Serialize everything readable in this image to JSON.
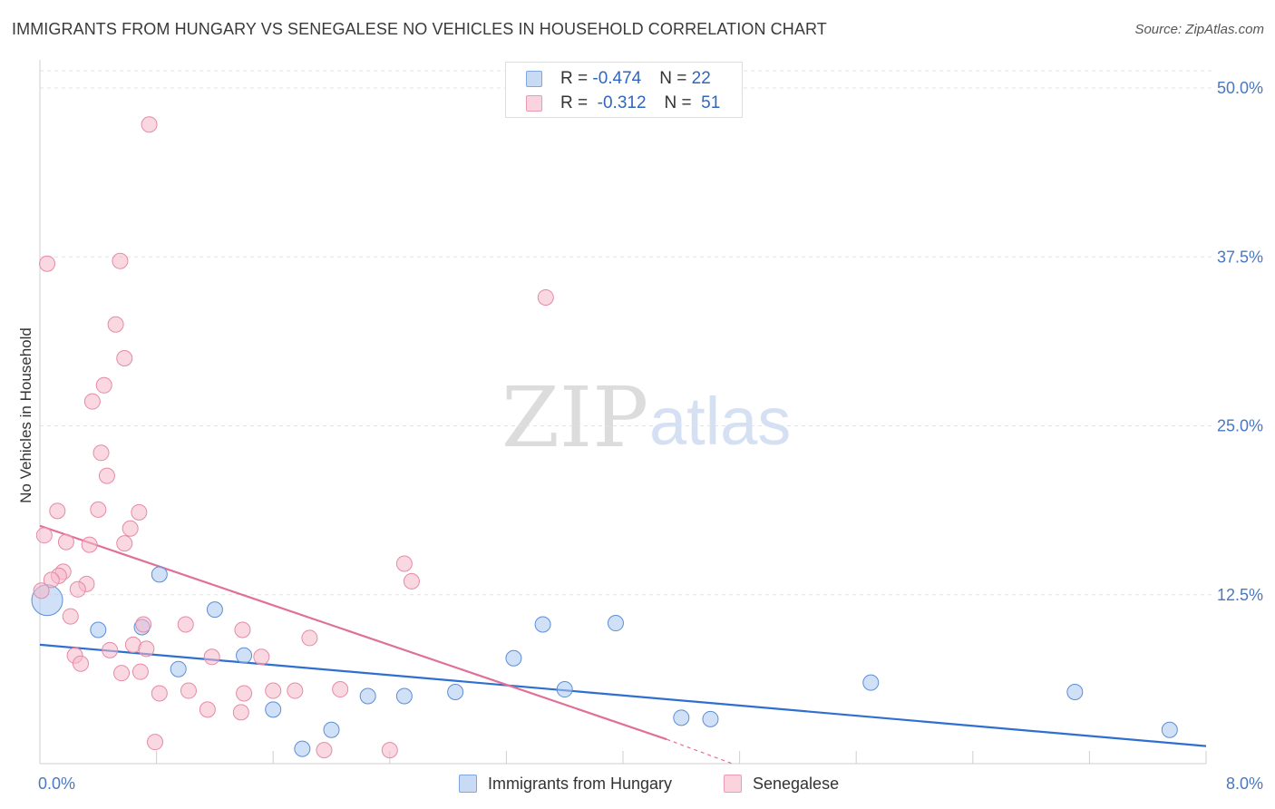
{
  "title": "IMMIGRANTS FROM HUNGARY VS SENEGALESE NO VEHICLES IN HOUSEHOLD CORRELATION CHART",
  "source": "Source: ZipAtlas.com",
  "watermark": {
    "zip": "ZIP",
    "atlas": "atlas"
  },
  "legend_top": {
    "rows": [
      {
        "r_label": "R = ",
        "r_value": "-0.474",
        "n_label": "N = ",
        "n_value": "22",
        "color": "#a9c6f0"
      },
      {
        "r_label": "R = ",
        "r_value": " -0.312",
        "n_label": "N = ",
        "n_value": " 51",
        "color": "#f6b8ca"
      }
    ]
  },
  "legend_bottom": [
    {
      "label": "Immigrants from Hungary",
      "color": "#a9c6f0"
    },
    {
      "label": "Senegalese",
      "color": "#f6b8ca"
    }
  ],
  "chart_data": {
    "type": "scatter",
    "title": "IMMIGRANTS FROM HUNGARY VS SENEGALESE NO VEHICLES IN HOUSEHOLD CORRELATION CHART",
    "xlabel": "",
    "ylabel": "No Vehicles in Household",
    "xlim": [
      0,
      8.0
    ],
    "ylim": [
      0,
      50.0
    ],
    "x_ticks": [
      "0.0%",
      "8.0%"
    ],
    "y_ticks": [
      "12.5%",
      "25.0%",
      "37.5%",
      "50.0%"
    ],
    "y_tick_values": [
      12.5,
      25.0,
      37.5,
      50.0
    ],
    "grid": "horizontal-dashed",
    "legend": "top-center",
    "series": [
      {
        "name": "Immigrants from Hungary",
        "color": "#a9c6f0",
        "stroke": "#5b8fd6",
        "line_color": "#2f6fcf",
        "points": [
          [
            0.05,
            12.1,
            3
          ],
          [
            0.4,
            9.9,
            1
          ],
          [
            0.7,
            10.1,
            1
          ],
          [
            0.82,
            14.0,
            1
          ],
          [
            0.95,
            7.0,
            1
          ],
          [
            1.2,
            11.4,
            1
          ],
          [
            1.4,
            8.0,
            1
          ],
          [
            1.6,
            4.0,
            1
          ],
          [
            1.8,
            1.1,
            1
          ],
          [
            2.0,
            2.5,
            1
          ],
          [
            2.25,
            5.0,
            1
          ],
          [
            2.5,
            5.0,
            1
          ],
          [
            2.85,
            5.3,
            1
          ],
          [
            3.25,
            7.8,
            1
          ],
          [
            3.45,
            10.3,
            1
          ],
          [
            3.6,
            5.5,
            1
          ],
          [
            3.95,
            10.4,
            1
          ],
          [
            4.4,
            3.4,
            1
          ],
          [
            4.6,
            3.3,
            1
          ],
          [
            5.7,
            6.0,
            1
          ],
          [
            7.1,
            5.3,
            1
          ],
          [
            7.75,
            2.5,
            1
          ]
        ],
        "trend": {
          "x": [
            0.0,
            8.0
          ],
          "y": [
            8.8,
            1.3
          ]
        }
      },
      {
        "name": "Senegalese",
        "color": "#f6b8ca",
        "stroke": "#e68aa6",
        "line_color": "#e0709a",
        "points": [
          [
            0.75,
            47.3,
            1
          ],
          [
            0.05,
            37.0,
            1
          ],
          [
            0.55,
            37.2,
            1
          ],
          [
            0.52,
            32.5,
            1
          ],
          [
            0.58,
            30.0,
            1
          ],
          [
            0.44,
            28.0,
            1
          ],
          [
            0.36,
            26.8,
            1
          ],
          [
            0.42,
            23.0,
            1
          ],
          [
            0.46,
            21.3,
            1
          ],
          [
            0.12,
            18.7,
            1
          ],
          [
            0.4,
            18.8,
            1
          ],
          [
            0.68,
            18.6,
            1
          ],
          [
            0.62,
            17.4,
            1
          ],
          [
            0.03,
            16.9,
            1
          ],
          [
            0.18,
            16.4,
            1
          ],
          [
            0.34,
            16.2,
            1
          ],
          [
            0.58,
            16.3,
            1
          ],
          [
            0.16,
            14.2,
            1
          ],
          [
            0.13,
            13.9,
            1
          ],
          [
            0.08,
            13.6,
            1
          ],
          [
            0.32,
            13.3,
            1
          ],
          [
            0.26,
            12.9,
            1
          ],
          [
            0.01,
            12.8,
            1
          ],
          [
            0.21,
            10.9,
            1
          ],
          [
            0.71,
            10.3,
            1
          ],
          [
            1.0,
            10.3,
            1
          ],
          [
            1.39,
            9.9,
            1
          ],
          [
            1.52,
            7.9,
            1
          ],
          [
            1.85,
            9.3,
            1
          ],
          [
            0.24,
            8.0,
            1
          ],
          [
            0.28,
            7.4,
            1
          ],
          [
            0.48,
            8.4,
            1
          ],
          [
            0.64,
            8.8,
            1
          ],
          [
            0.73,
            8.5,
            1
          ],
          [
            1.18,
            7.9,
            1
          ],
          [
            0.56,
            6.7,
            1
          ],
          [
            0.69,
            6.8,
            1
          ],
          [
            0.82,
            5.2,
            1
          ],
          [
            1.02,
            5.4,
            1
          ],
          [
            1.4,
            5.2,
            1
          ],
          [
            1.6,
            5.4,
            1
          ],
          [
            1.75,
            5.4,
            1
          ],
          [
            2.06,
            5.5,
            1
          ],
          [
            1.15,
            4.0,
            1
          ],
          [
            1.38,
            3.8,
            1
          ],
          [
            0.79,
            1.6,
            1
          ],
          [
            1.95,
            1.0,
            1
          ],
          [
            2.4,
            1.0,
            1
          ],
          [
            2.5,
            14.8,
            1
          ],
          [
            2.55,
            13.5,
            1
          ],
          [
            3.47,
            34.5,
            1
          ]
        ],
        "trend": {
          "x": [
            0.0,
            4.3
          ],
          "y": [
            17.6,
            1.8
          ]
        },
        "trend_extension": {
          "x": [
            4.3,
            4.75
          ],
          "y": [
            1.8,
            0.0
          ]
        }
      }
    ]
  }
}
